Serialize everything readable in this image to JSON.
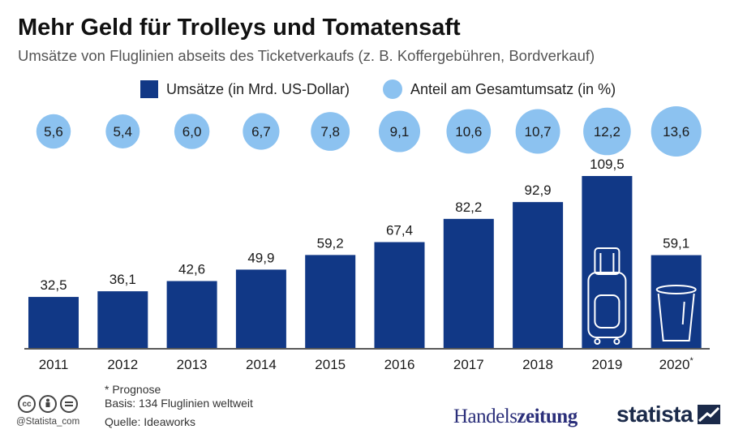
{
  "title": "Mehr Geld für Trolleys und Tomatensaft",
  "subtitle": "Umsätze von Fluglinien abseits des Ticketverkaufs (z. B. Koffergebühren, Bordverkauf)",
  "legend": {
    "bars_label": "Umsätze (in Mrd. US-Dollar)",
    "circles_label": "Anteil am Gesamtumsatz (in %)"
  },
  "colors": {
    "bar": "#113886",
    "circle": "#8cc2f0",
    "axis": "#222222"
  },
  "chart_data": {
    "type": "bar",
    "categories": [
      "2011",
      "2012",
      "2013",
      "2014",
      "2015",
      "2016",
      "2017",
      "2018",
      "2019",
      "2020*"
    ],
    "series": [
      {
        "name": "Umsätze (in Mrd. US-Dollar)",
        "values": [
          32.5,
          36.1,
          42.6,
          49.9,
          59.2,
          67.4,
          82.2,
          92.9,
          109.5,
          59.1
        ],
        "labels": [
          "32,5",
          "36,1",
          "42,6",
          "49,9",
          "59,2",
          "67,4",
          "82,2",
          "92,9",
          "109,5",
          "59,1"
        ]
      },
      {
        "name": "Anteil am Gesamtumsatz (in %)",
        "values": [
          5.6,
          5.4,
          6.0,
          6.7,
          7.8,
          9.1,
          10.6,
          10.7,
          12.2,
          13.6
        ],
        "labels": [
          "5,6",
          "5,4",
          "6,0",
          "6,7",
          "7,8",
          "9,1",
          "10,6",
          "10,7",
          "12,2",
          "13,6"
        ]
      }
    ],
    "icons": {
      "2019": "suitcase-icon",
      "2020*": "cup-icon"
    },
    "ylim": [
      0,
      109.5
    ],
    "grid": false
  },
  "footer": {
    "note": "* Prognose",
    "basis": "Basis: 134 Fluglinien weltweit",
    "source": "Quelle: Ideaworks",
    "handle": "@Statista_com"
  },
  "brands": {
    "handelszeitung_a": "Handels",
    "handelszeitung_b": "zeitung",
    "statista": "statista"
  }
}
